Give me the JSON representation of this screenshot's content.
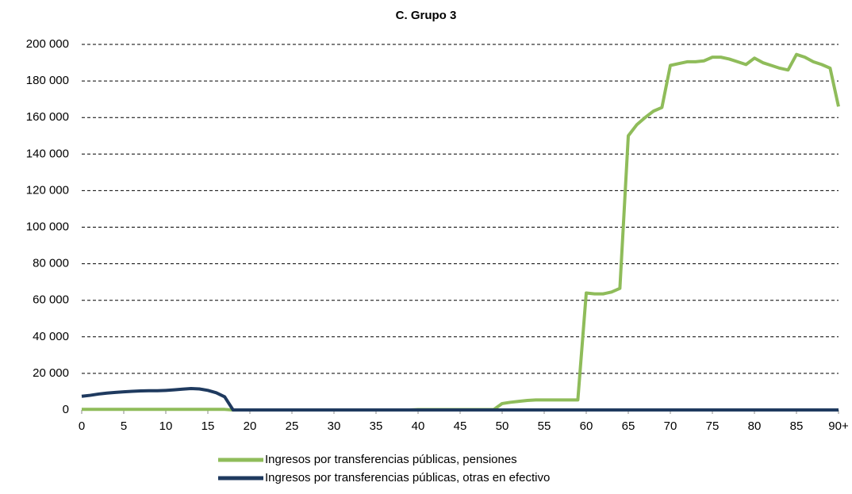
{
  "chart_data": {
    "type": "line",
    "title": "C. Grupo 3",
    "categories": [
      "0",
      null,
      null,
      null,
      null,
      "5",
      null,
      null,
      null,
      null,
      "10",
      null,
      null,
      null,
      null,
      "15",
      null,
      null,
      null,
      null,
      "20",
      null,
      null,
      null,
      null,
      "25",
      null,
      null,
      null,
      null,
      "30",
      null,
      null,
      null,
      null,
      "35",
      null,
      null,
      null,
      null,
      "40",
      null,
      null,
      null,
      null,
      "45",
      null,
      null,
      null,
      null,
      "50",
      null,
      null,
      null,
      null,
      "55",
      null,
      null,
      null,
      null,
      "60",
      null,
      null,
      null,
      null,
      "65",
      null,
      null,
      null,
      null,
      "70",
      null,
      null,
      null,
      null,
      "75",
      null,
      null,
      null,
      null,
      "80",
      null,
      null,
      null,
      null,
      "85",
      null,
      null,
      null,
      null,
      "90+"
    ],
    "series": [
      {
        "name": "Ingresos por transferencias públicas, pensiones",
        "color": "#8fbc5a",
        "values": [
          300,
          300,
          300,
          300,
          300,
          300,
          300,
          300,
          300,
          300,
          300,
          300,
          300,
          300,
          300,
          300,
          300,
          300,
          0,
          0,
          0,
          0,
          0,
          0,
          0,
          0,
          0,
          0,
          0,
          0,
          0,
          0,
          0,
          0,
          0,
          0,
          0,
          0,
          0,
          0,
          200,
          200,
          200,
          200,
          200,
          200,
          200,
          200,
          200,
          200,
          3500,
          4200,
          4700,
          5200,
          5500,
          5500,
          5500,
          5500,
          5500,
          5500,
          64000,
          63500,
          63500,
          64500,
          66500,
          150000,
          156000,
          160000,
          163500,
          165500,
          188500,
          189500,
          190500,
          190500,
          191000,
          193000,
          193000,
          192000,
          190500,
          189000,
          192500,
          190000,
          188500,
          187000,
          186000,
          194500,
          193000,
          190500,
          189000,
          187000,
          166000
        ]
      },
      {
        "name": "Ingresos por transferencias públicas, otras en efectivo",
        "color": "#1f3a5f",
        "values": [
          7500,
          8000,
          8700,
          9200,
          9600,
          9900,
          10200,
          10400,
          10500,
          10500,
          10700,
          11000,
          11400,
          11700,
          11500,
          10700,
          9400,
          7200,
          0,
          0,
          0,
          0,
          0,
          0,
          0,
          0,
          0,
          0,
          0,
          0,
          0,
          0,
          0,
          0,
          0,
          0,
          0,
          0,
          0,
          0,
          0,
          0,
          0,
          0,
          0,
          0,
          0,
          0,
          0,
          0,
          0,
          0,
          0,
          0,
          0,
          0,
          0,
          0,
          0,
          0,
          0,
          0,
          0,
          0,
          0,
          0,
          0,
          0,
          0,
          0,
          0,
          0,
          0,
          0,
          0,
          0,
          0,
          0,
          0,
          0,
          0,
          0,
          0,
          0,
          0,
          0,
          0,
          0,
          0,
          0,
          0
        ]
      }
    ],
    "ylim": [
      0,
      200000
    ],
    "yticks": [
      0,
      {
        "value": 20000,
        "label": "20 000"
      },
      {
        "value": 40000,
        "label": "40 000"
      },
      {
        "value": 60000,
        "label": "60 000"
      },
      {
        "value": 80000,
        "label": "80 000"
      },
      {
        "value": 100000,
        "label": "100 000"
      },
      {
        "value": 120000,
        "label": "120 000"
      },
      {
        "value": 140000,
        "label": "140 000"
      },
      {
        "value": 160000,
        "label": "160 000"
      },
      {
        "value": 180000,
        "label": "180 000"
      },
      {
        "value": 200000,
        "label": "200 000"
      }
    ],
    "grid": true,
    "legend": "bottom"
  }
}
